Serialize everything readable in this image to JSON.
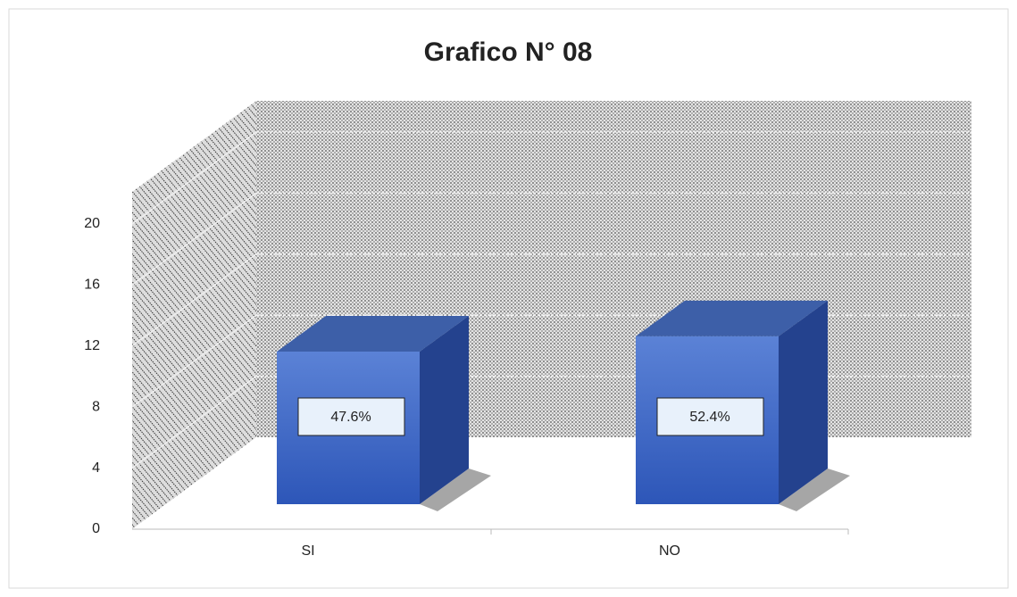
{
  "chart_data": {
    "type": "bar3d",
    "title": "Grafico N° 08",
    "categories": [
      "SI",
      "NO"
    ],
    "values": [
      10,
      11
    ],
    "value_labels": [
      "47.6%",
      "52.4%"
    ],
    "color": "#3a62c0",
    "ylim": [
      0,
      20
    ],
    "yticks": [
      0,
      4,
      8,
      12,
      16,
      20
    ],
    "grid": true
  }
}
